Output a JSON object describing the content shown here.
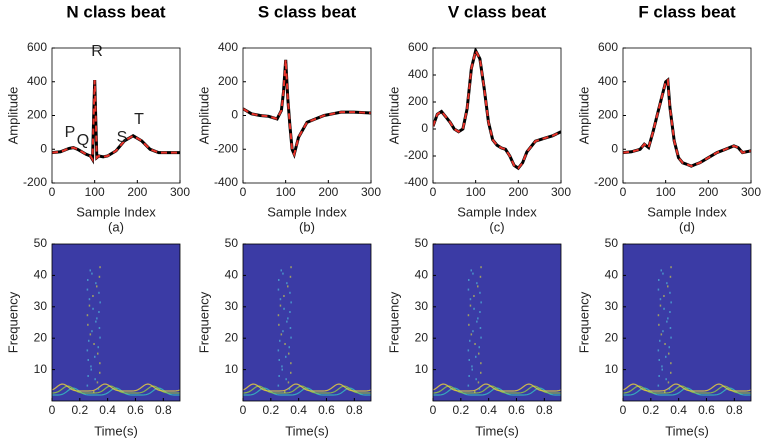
{
  "chart_data": [
    {
      "type": "line",
      "title": "N class beat",
      "xlabel": "Sample Index",
      "ylabel": "Amplitude",
      "caption": "(a)",
      "annotations": [
        "P",
        "Q",
        "R",
        "S",
        "T"
      ],
      "x": [
        0,
        20,
        40,
        50,
        60,
        70,
        80,
        90,
        95,
        100,
        105,
        110,
        120,
        130,
        150,
        170,
        190,
        210,
        230,
        250,
        270,
        300
      ],
      "series": [
        {
          "color": "#000000",
          "values": [
            -20,
            -15,
            5,
            10,
            0,
            -15,
            -30,
            -40,
            -60,
            410,
            -50,
            -40,
            -45,
            -40,
            -10,
            50,
            80,
            50,
            0,
            -20,
            -20,
            -20
          ]
        },
        {
          "color": "#e8332a",
          "dashed": true,
          "values": [
            -20,
            -15,
            5,
            10,
            0,
            -15,
            -30,
            -40,
            -60,
            410,
            -50,
            -40,
            -45,
            -40,
            -10,
            50,
            80,
            50,
            0,
            -20,
            -20,
            -20
          ]
        }
      ],
      "xlim": [
        0,
        300
      ],
      "xticks": [
        0,
        100,
        200,
        300
      ],
      "ylim": [
        -200,
        600
      ],
      "yticks": [
        -200,
        0,
        200,
        400,
        600
      ]
    },
    {
      "type": "line",
      "title": "S class beat",
      "xlabel": "Sample Index",
      "ylabel": "Amplitude",
      "caption": "(b)",
      "x": [
        0,
        20,
        40,
        60,
        80,
        90,
        95,
        100,
        105,
        110,
        115,
        120,
        130,
        150,
        170,
        190,
        210,
        230,
        260,
        300
      ],
      "series": [
        {
          "color": "#000000",
          "values": [
            40,
            10,
            0,
            -5,
            -20,
            30,
            140,
            330,
            100,
            -60,
            -200,
            -230,
            -130,
            -40,
            -20,
            0,
            10,
            20,
            20,
            15
          ]
        },
        {
          "color": "#e8332a",
          "dashed": true,
          "values": [
            40,
            10,
            0,
            -5,
            -20,
            30,
            140,
            330,
            100,
            -60,
            -200,
            -230,
            -130,
            -40,
            -20,
            0,
            10,
            20,
            20,
            15
          ]
        }
      ],
      "xlim": [
        0,
        300
      ],
      "xticks": [
        0,
        100,
        200,
        300
      ],
      "ylim": [
        -400,
        400
      ],
      "yticks": [
        -400,
        -200,
        0,
        200,
        400
      ]
    },
    {
      "type": "line",
      "title": "V class beat",
      "xlabel": "Sample Index",
      "ylabel": "Amplitude",
      "caption": "(c)",
      "x": [
        0,
        10,
        20,
        30,
        40,
        50,
        60,
        70,
        80,
        90,
        100,
        110,
        120,
        130,
        140,
        150,
        160,
        170,
        180,
        190,
        200,
        210,
        220,
        240,
        260,
        280,
        300
      ],
      "series": [
        {
          "color": "#000000",
          "values": [
            20,
            110,
            130,
            90,
            50,
            0,
            -20,
            0,
            150,
            450,
            580,
            520,
            300,
            50,
            -80,
            -120,
            -140,
            -150,
            -200,
            -270,
            -290,
            -250,
            -170,
            -90,
            -70,
            -50,
            -20
          ]
        },
        {
          "color": "#e8332a",
          "dashed": true,
          "values": [
            20,
            110,
            130,
            90,
            50,
            0,
            -20,
            0,
            150,
            450,
            580,
            520,
            300,
            50,
            -80,
            -120,
            -140,
            -150,
            -200,
            -270,
            -290,
            -250,
            -170,
            -90,
            -70,
            -50,
            -20
          ]
        }
      ],
      "xlim": [
        0,
        300
      ],
      "xticks": [
        0,
        100,
        200,
        300
      ],
      "ylim": [
        -400,
        600
      ],
      "yticks": [
        -400,
        -200,
        0,
        200,
        400,
        600
      ]
    },
    {
      "type": "line",
      "title": "F class beat",
      "xlabel": "Sample Index",
      "ylabel": "Amplitude",
      "caption": "(d)",
      "x": [
        0,
        20,
        40,
        50,
        60,
        70,
        80,
        90,
        100,
        105,
        110,
        120,
        130,
        140,
        150,
        160,
        170,
        180,
        200,
        220,
        240,
        260,
        270,
        280,
        300
      ],
      "series": [
        {
          "color": "#000000",
          "values": [
            -20,
            -15,
            0,
            30,
            10,
            100,
            200,
            300,
            400,
            410,
            250,
            50,
            -50,
            -80,
            -90,
            -100,
            -90,
            -80,
            -50,
            -20,
            0,
            20,
            10,
            -20,
            -10
          ]
        },
        {
          "color": "#e8332a",
          "dashed": true,
          "values": [
            -20,
            -15,
            0,
            30,
            10,
            100,
            200,
            300,
            400,
            410,
            250,
            50,
            -50,
            -80,
            -90,
            -100,
            -90,
            -80,
            -50,
            -20,
            0,
            20,
            10,
            -20,
            -10
          ]
        }
      ],
      "xlim": [
        0,
        300
      ],
      "xticks": [
        0,
        100,
        200,
        300
      ],
      "ylim": [
        -200,
        600
      ],
      "yticks": [
        -200,
        0,
        200,
        400,
        600
      ]
    },
    {
      "type": "spectrogram",
      "xlabel": "Time(s)",
      "ylabel": "Frequency",
      "color": "#3b3ba5",
      "xlim": [
        0,
        0.92
      ],
      "xticks": [
        0,
        0.2,
        0.4,
        0.6,
        0.8
      ],
      "ylim": [
        0,
        50
      ],
      "yticks": [
        10,
        20,
        30,
        40,
        50
      ]
    },
    {
      "type": "spectrogram",
      "xlabel": "Time(s)",
      "ylabel": "Frequency",
      "color": "#3b3ba5",
      "xlim": [
        0,
        0.92
      ],
      "xticks": [
        0,
        0.2,
        0.4,
        0.6,
        0.8
      ],
      "ylim": [
        0,
        50
      ],
      "yticks": [
        10,
        20,
        30,
        40,
        50
      ]
    },
    {
      "type": "spectrogram",
      "xlabel": "Time(s)",
      "ylabel": "Frequency",
      "color": "#3b3ba5",
      "xlim": [
        0,
        0.92
      ],
      "xticks": [
        0,
        0.2,
        0.4,
        0.6,
        0.8
      ],
      "ylim": [
        0,
        50
      ],
      "yticks": [
        10,
        20,
        30,
        40,
        50
      ]
    },
    {
      "type": "spectrogram",
      "xlabel": "Time(s)",
      "ylabel": "Frequency",
      "color": "#3b3ba5",
      "xlim": [
        0,
        0.92
      ],
      "xticks": [
        0,
        0.2,
        0.4,
        0.6,
        0.8
      ],
      "ylim": [
        0,
        50
      ],
      "yticks": [
        10,
        20,
        30,
        40,
        50
      ]
    }
  ]
}
